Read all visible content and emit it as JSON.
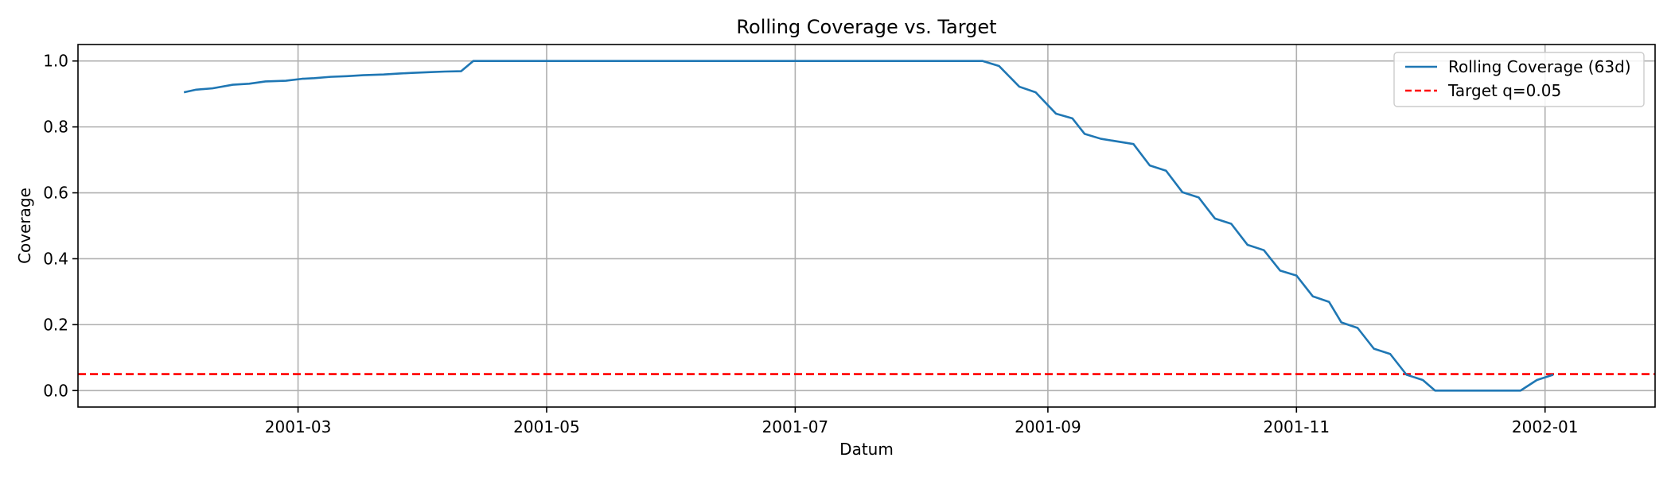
{
  "chart_data": {
    "type": "line",
    "title": "Rolling Coverage vs. Target",
    "xlabel": "Datum",
    "ylabel": "Coverage",
    "xlim": [
      "2001-01-06",
      "2002-01-28"
    ],
    "ylim": [
      -0.05,
      1.05
    ],
    "x_ticks": [
      "2001-03-01",
      "2001-05-01",
      "2001-07-01",
      "2001-09-01",
      "2001-11-01",
      "2002-01-01"
    ],
    "x_tick_labels": [
      "2001-03",
      "2001-05",
      "2001-07",
      "2001-09",
      "2001-11",
      "2002-01"
    ],
    "y_ticks": [
      0.0,
      0.2,
      0.4,
      0.6,
      0.8,
      1.0
    ],
    "y_tick_labels": [
      "0.0",
      "0.2",
      "0.4",
      "0.6",
      "0.8",
      "1.0"
    ],
    "grid": true,
    "legend_position": "upper right",
    "series": [
      {
        "name": "Rolling Coverage (63d)",
        "color": "#1f77b4",
        "style": "solid",
        "points": [
          [
            "2001-02-01",
            0.905
          ],
          [
            "2001-02-04",
            0.913
          ],
          [
            "2001-02-08",
            0.917
          ],
          [
            "2001-02-13",
            0.928
          ],
          [
            "2001-02-17",
            0.931
          ],
          [
            "2001-02-21",
            0.938
          ],
          [
            "2001-02-26",
            0.94
          ],
          [
            "2001-03-02",
            0.946
          ],
          [
            "2001-03-05",
            0.948
          ],
          [
            "2001-03-09",
            0.952
          ],
          [
            "2001-03-13",
            0.954
          ],
          [
            "2001-03-17",
            0.957
          ],
          [
            "2001-03-22",
            0.959
          ],
          [
            "2001-03-26",
            0.962
          ],
          [
            "2001-03-29",
            0.964
          ],
          [
            "2001-04-02",
            0.966
          ],
          [
            "2001-04-06",
            0.968
          ],
          [
            "2001-04-10",
            0.969
          ],
          [
            "2001-04-13",
            1.0
          ],
          [
            "2001-08-16",
            1.0
          ],
          [
            "2001-08-20",
            0.985
          ],
          [
            "2001-08-25",
            0.922
          ],
          [
            "2001-08-29",
            0.905
          ],
          [
            "2001-09-03",
            0.84
          ],
          [
            "2001-09-07",
            0.826
          ],
          [
            "2001-09-10",
            0.779
          ],
          [
            "2001-09-14",
            0.764
          ],
          [
            "2001-09-22",
            0.748
          ],
          [
            "2001-09-26",
            0.683
          ],
          [
            "2001-09-30",
            0.667
          ],
          [
            "2001-10-04",
            0.602
          ],
          [
            "2001-10-08",
            0.586
          ],
          [
            "2001-10-12",
            0.522
          ],
          [
            "2001-10-16",
            0.506
          ],
          [
            "2001-10-20",
            0.442
          ],
          [
            "2001-10-24",
            0.426
          ],
          [
            "2001-10-28",
            0.364
          ],
          [
            "2001-11-01",
            0.349
          ],
          [
            "2001-11-05",
            0.286
          ],
          [
            "2001-11-09",
            0.269
          ],
          [
            "2001-11-12",
            0.207
          ],
          [
            "2001-11-16",
            0.19
          ],
          [
            "2001-11-20",
            0.127
          ],
          [
            "2001-11-24",
            0.111
          ],
          [
            "2001-11-28",
            0.048
          ],
          [
            "2001-12-02",
            0.032
          ],
          [
            "2001-12-05",
            0.0
          ],
          [
            "2001-12-26",
            0.0
          ],
          [
            "2001-12-30",
            0.032
          ],
          [
            "2002-01-03",
            0.048
          ]
        ]
      },
      {
        "name": "Target q=0.05",
        "color": "#ff0000",
        "style": "dashed",
        "y": 0.05
      }
    ]
  }
}
